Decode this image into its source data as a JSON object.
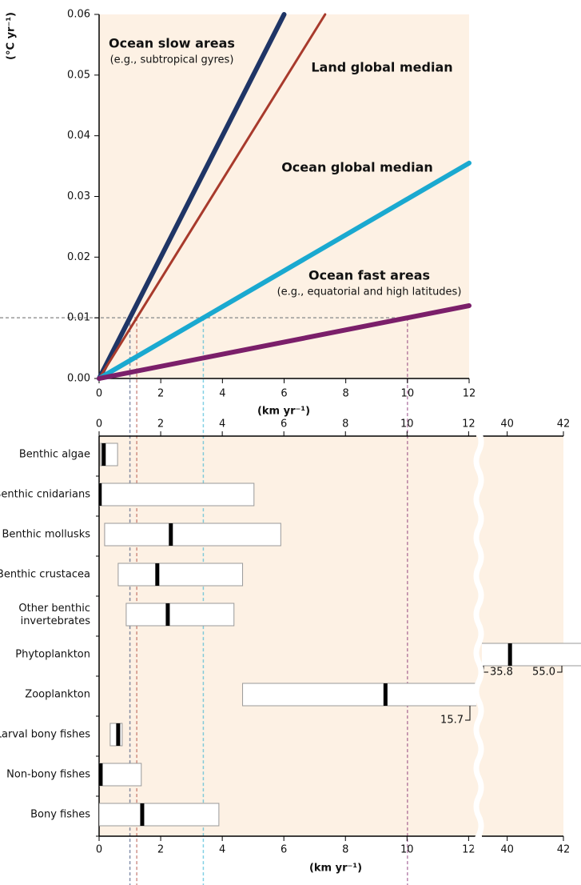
{
  "chart_data": [
    {
      "type": "line",
      "ylabel": "(°C yr⁻¹)",
      "xlabel": "(km yr⁻¹)",
      "xlim": [
        0,
        12
      ],
      "ylim": [
        0,
        0.06
      ],
      "xticks": [
        0,
        2,
        4,
        6,
        8,
        10,
        12
      ],
      "yticks": [
        {
          "value": 0,
          "label": "0.00"
        },
        {
          "value": 0.01,
          "label": "0.01"
        },
        {
          "value": 0.02,
          "label": "0.02"
        },
        {
          "value": 0.03,
          "label": "0.03"
        },
        {
          "value": 0.04,
          "label": "0.04"
        },
        {
          "value": 0.05,
          "label": "0.05"
        },
        {
          "value": 0.06,
          "label": "0.06"
        }
      ],
      "reference_y": 0.01,
      "series": [
        {
          "name": "Ocean slow areas",
          "note": "(e.g., subtropical gyres)",
          "color": "#1f3566",
          "x": [
            0,
            6
          ],
          "values": [
            0,
            0.06
          ]
        },
        {
          "name": "Land global median",
          "color": "#a83a2c",
          "x": [
            0,
            7.33
          ],
          "values": [
            0,
            0.06
          ]
        },
        {
          "name": "Ocean global median",
          "color": "#1aa9d0",
          "x": [
            0,
            12
          ],
          "values": [
            0,
            0.0355
          ]
        },
        {
          "name": "Ocean fast areas",
          "note": "(e.g., equatorial and high latitudes)",
          "color": "#7b1f6a",
          "x": [
            0,
            12
          ],
          "values": [
            0,
            0.012
          ]
        }
      ]
    },
    {
      "type": "range",
      "xlabel": "(km yr⁻¹)",
      "xlim": [
        0,
        12.25
      ],
      "xticks": [
        0,
        2,
        4,
        6,
        8,
        10,
        12
      ],
      "xlim2": [
        39.1,
        42
      ],
      "xticks2": [
        40,
        42
      ],
      "categories": [
        "Benthic algae",
        "Benthic cnidarians",
        "Benthic mollusks",
        "Benthic crustacea",
        "Other benthic invertebrates",
        "Phytoplankton",
        "Zooplankton",
        "Larval bony fishes",
        "Non-bony fishes",
        "Bony fishes"
      ],
      "low": [
        0.05,
        0,
        0.18,
        0.62,
        0.88,
        35.8,
        4.66,
        0.36,
        0,
        0
      ],
      "median": [
        0.15,
        0.02,
        2.33,
        1.89,
        2.23,
        40.1,
        9.3,
        0.62,
        0.05,
        1.4
      ],
      "high": [
        0.6,
        5.03,
        5.9,
        4.66,
        4.38,
        55.0,
        15.7,
        0.75,
        1.37,
        3.89
      ],
      "low_value_labels": [
        null,
        null,
        null,
        null,
        null,
        "35.8",
        null,
        null,
        null,
        null
      ],
      "high_value_labels": [
        null,
        null,
        null,
        null,
        null,
        "55.0",
        "15.7",
        null,
        null,
        null
      ]
    }
  ]
}
